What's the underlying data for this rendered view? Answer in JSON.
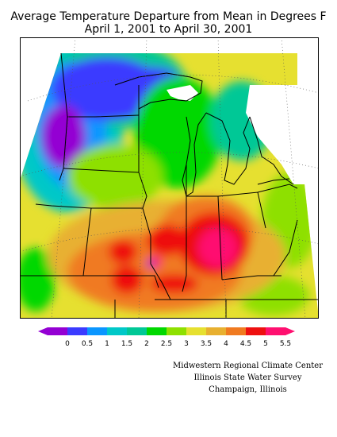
{
  "title": {
    "line1": "Average Temperature Departure from Mean in Degrees F",
    "line2": "April 1, 2001 to April 30, 2001"
  },
  "legend": {
    "labels": [
      "0",
      "0.5",
      "1",
      "1.5",
      "2",
      "2.5",
      "3",
      "3.5",
      "4",
      "4.5",
      "5",
      "5.5"
    ],
    "colors": [
      "#9400d3",
      "#3b3bff",
      "#0a96ff",
      "#00c8c8",
      "#00c896",
      "#00d800",
      "#8ee000",
      "#e6e030",
      "#e8b030",
      "#f07a20",
      "#ee1010",
      "#ff1070"
    ]
  },
  "credits": {
    "line1": "Midwestern Regional Climate Center",
    "line2": "Illinois State Water Survey",
    "line3": "Champaign, Illinois"
  }
}
